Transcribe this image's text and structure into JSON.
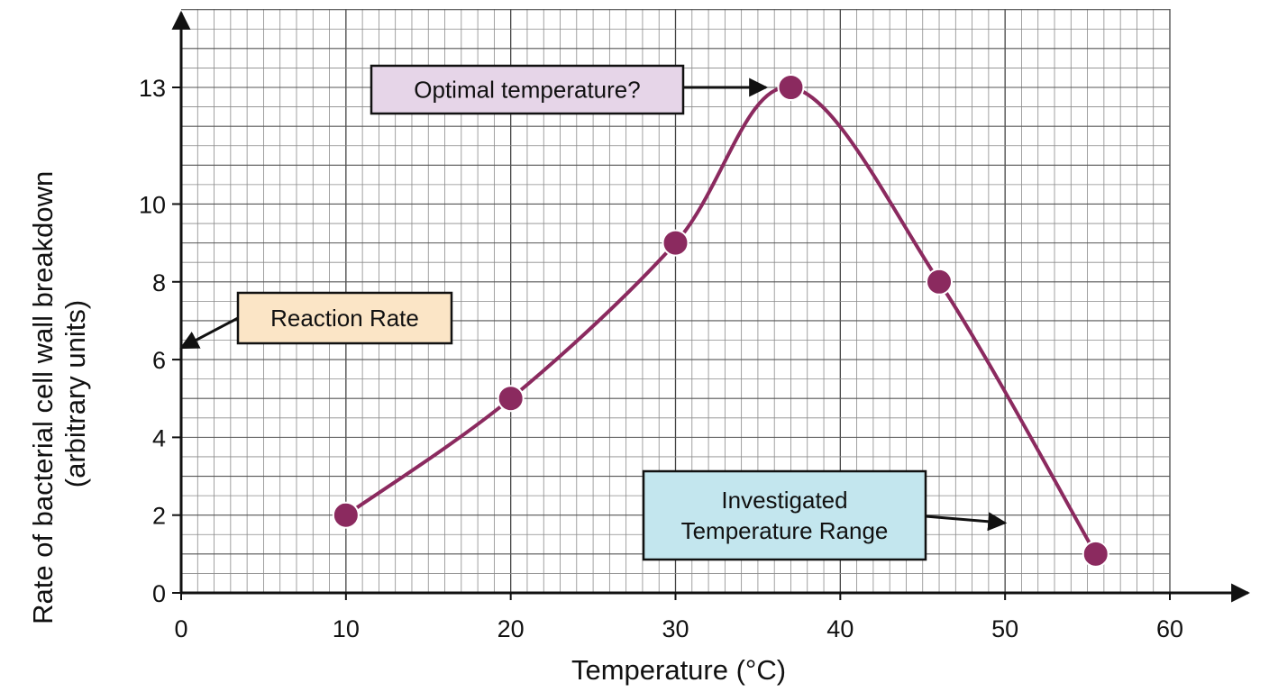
{
  "chart_data": {
    "type": "line",
    "xlabel": "Temperature (°C)",
    "ylabel_lines": [
      "Rate of bacterial cell wall breakdown",
      "(arbitrary units)"
    ],
    "xlim": [
      0,
      60
    ],
    "ylim": [
      0,
      13
    ],
    "x_ticks": [
      0,
      10,
      20,
      30,
      40,
      50,
      60
    ],
    "y_ticks": [
      0,
      2,
      4,
      6,
      8,
      10,
      13
    ],
    "grid": true,
    "points": [
      {
        "x": 10,
        "y": 2
      },
      {
        "x": 20,
        "y": 5
      },
      {
        "x": 30,
        "y": 9
      },
      {
        "x": 37,
        "y": 13
      },
      {
        "x": 46,
        "y": 8
      },
      {
        "x": 55.5,
        "y": 1
      }
    ],
    "line_color": "#8b2a5f",
    "point_color": "#8b2a5f",
    "annotations": [
      {
        "id": "optimal",
        "lines": [
          "Optimal temperature?"
        ],
        "fill": "#e6d5e8",
        "arrow_to": {
          "x": 35.5,
          "y": 13
        }
      },
      {
        "id": "reaction-rate",
        "lines": [
          "Reaction Rate"
        ],
        "fill": "#fbe5c6",
        "arrow_to": {
          "x": 0,
          "y": 6.3
        }
      },
      {
        "id": "range",
        "lines": [
          "Investigated",
          "Temperature Range"
        ],
        "fill": "#c3e6ee",
        "arrow_to": {
          "x": 50,
          "y": 1.8
        }
      }
    ]
  }
}
